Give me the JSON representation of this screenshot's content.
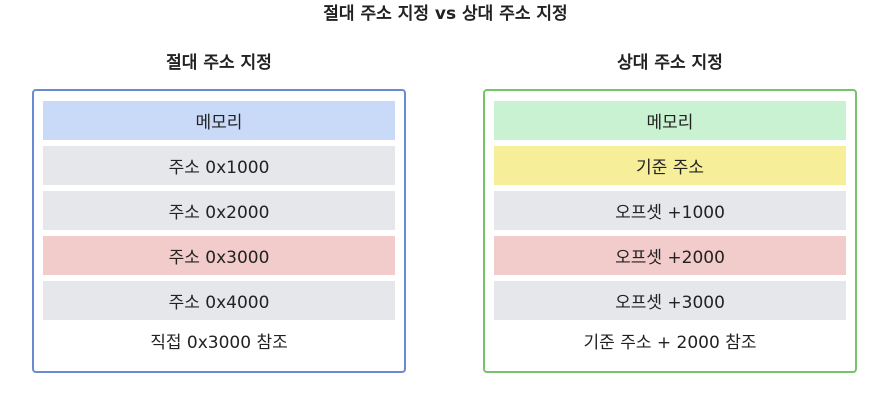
{
  "title": "절대 주소 지정 vs 상대 주소 지정",
  "colors": {
    "absolute_border": "#6a8bd4",
    "relative_border": "#76c46a",
    "memory_blue": "#c9daf8",
    "neutral_gray": "#e6e7ea",
    "highlight_red": "#f2cbcb",
    "memory_green": "#c9f2d2",
    "base_yellow": "#f6ee98"
  },
  "absolute": {
    "title": "절대 주소 지정",
    "items": [
      "메모리",
      "주소 0x1000",
      "주소 0x2000",
      "주소 0x3000",
      "주소 0x4000"
    ],
    "caption": "직접 0x3000 참조"
  },
  "relative": {
    "title": "상대 주소 지정",
    "items": [
      "메모리",
      "기준 주소",
      "오프셋 +1000",
      "오프셋 +2000",
      "오프셋 +3000"
    ],
    "caption": "기준 주소 + 2000 참조"
  }
}
